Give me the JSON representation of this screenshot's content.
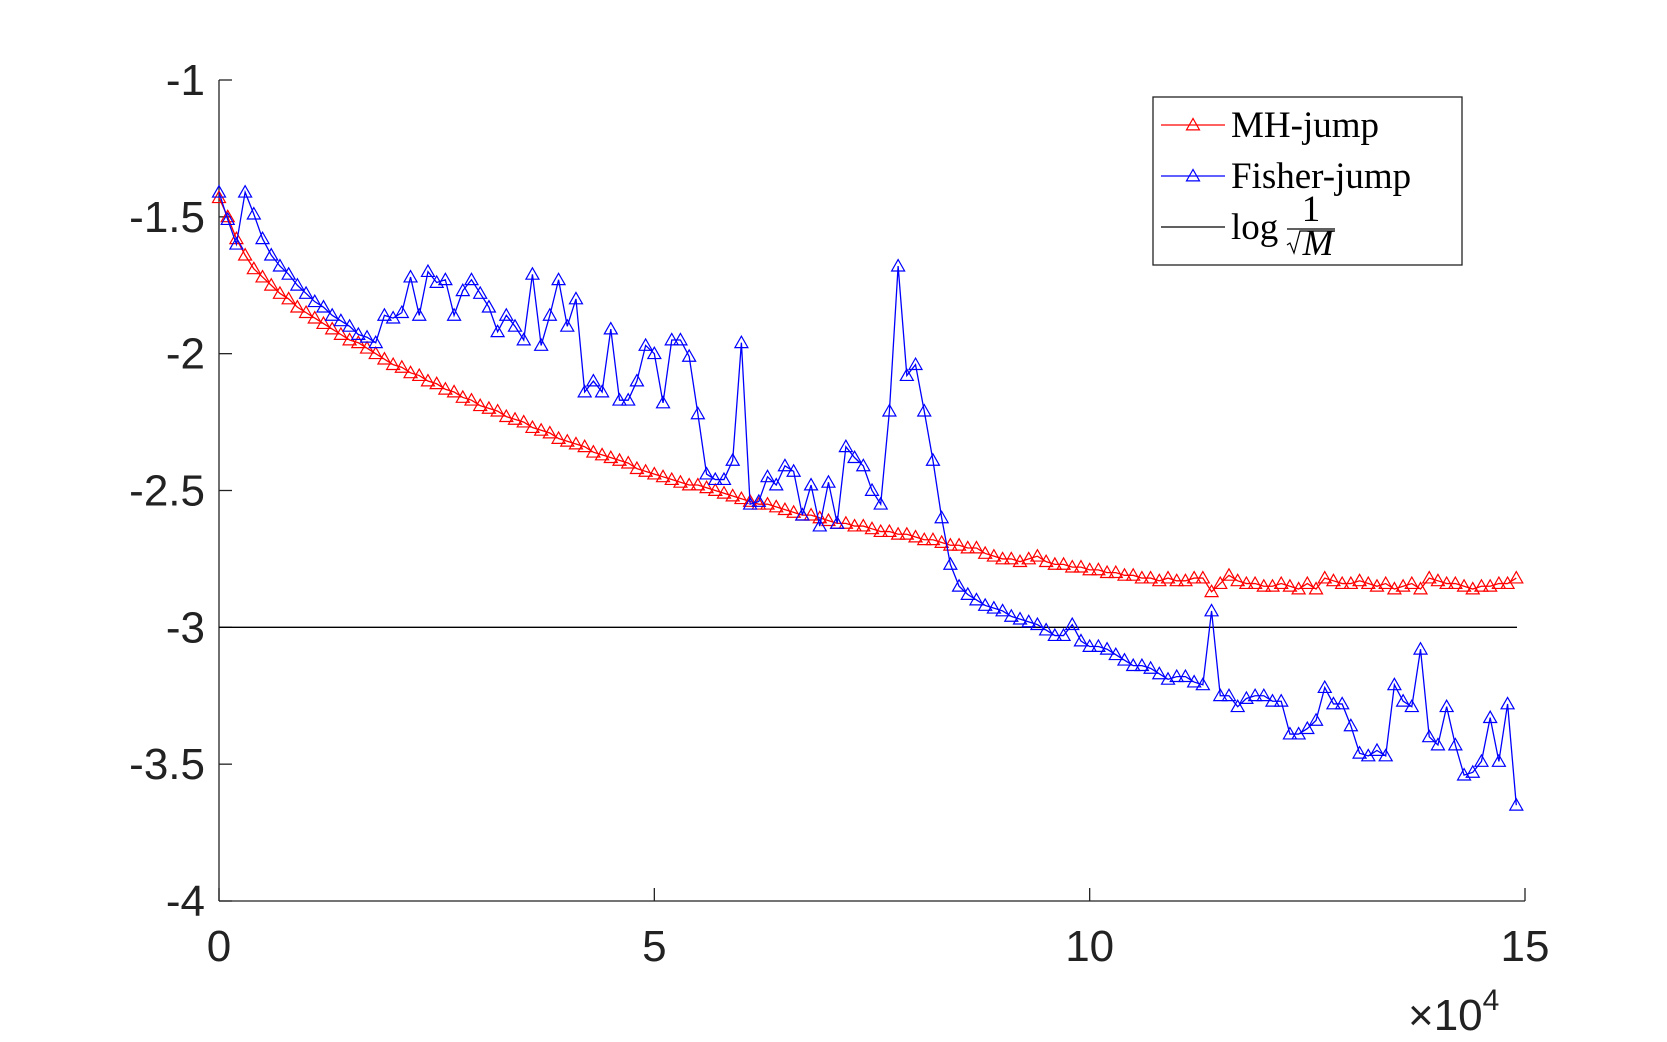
{
  "chart_data": {
    "type": "line",
    "x": [
      0,
      0.1,
      0.2,
      0.3,
      0.4,
      0.5,
      0.6,
      0.7,
      0.8,
      0.9,
      1,
      1.1,
      1.2,
      1.3,
      1.4,
      1.5,
      1.6,
      1.7,
      1.8,
      1.9,
      2,
      2.1,
      2.2,
      2.3,
      2.4,
      2.5,
      2.6,
      2.7,
      2.8,
      2.9,
      3,
      3.1,
      3.2,
      3.3,
      3.4,
      3.5,
      3.6,
      3.7,
      3.8,
      3.9,
      4,
      4.1,
      4.2,
      4.3,
      4.4,
      4.5,
      4.6,
      4.7,
      4.8,
      4.9,
      5,
      5.1,
      5.2,
      5.3,
      5.4,
      5.5,
      5.6,
      5.7,
      5.8,
      5.9,
      6,
      6.1,
      6.2,
      6.3,
      6.4,
      6.5,
      6.6,
      6.7,
      6.8,
      6.9,
      7,
      7.1,
      7.2,
      7.3,
      7.4,
      7.5,
      7.6,
      7.7,
      7.8,
      7.9,
      8,
      8.1,
      8.2,
      8.3,
      8.4,
      8.5,
      8.6,
      8.7,
      8.8,
      8.9,
      9,
      9.1,
      9.2,
      9.3,
      9.4,
      9.5,
      9.6,
      9.7,
      9.8,
      9.9,
      10,
      10.1,
      10.2,
      10.3,
      10.4,
      10.5,
      10.6,
      10.7,
      10.8,
      10.9,
      11,
      11.1,
      11.2,
      11.3,
      11.4,
      11.5,
      11.6,
      11.7,
      11.8,
      11.9,
      12,
      12.1,
      12.2,
      12.3,
      12.4,
      12.5,
      12.6,
      12.7,
      12.8,
      12.9,
      13,
      13.1,
      13.2,
      13.3,
      13.4,
      13.5,
      13.6,
      13.7,
      13.8,
      13.9,
      14,
      14.1,
      14.2,
      14.3,
      14.4,
      14.5,
      14.6,
      14.7,
      14.8,
      14.9
    ],
    "series": [
      {
        "name": "MH-jump",
        "color": "#ff0000",
        "values": [
          -1.43,
          -1.5,
          -1.58,
          -1.64,
          -1.69,
          -1.72,
          -1.75,
          -1.78,
          -1.8,
          -1.83,
          -1.85,
          -1.87,
          -1.89,
          -1.91,
          -1.93,
          -1.95,
          -1.96,
          -1.98,
          -2.0,
          -2.02,
          -2.04,
          -2.05,
          -2.07,
          -2.08,
          -2.1,
          -2.11,
          -2.13,
          -2.14,
          -2.16,
          -2.17,
          -2.19,
          -2.2,
          -2.21,
          -2.23,
          -2.24,
          -2.25,
          -2.27,
          -2.28,
          -2.29,
          -2.31,
          -2.32,
          -2.33,
          -2.34,
          -2.36,
          -2.37,
          -2.38,
          -2.39,
          -2.4,
          -2.42,
          -2.43,
          -2.44,
          -2.45,
          -2.46,
          -2.47,
          -2.48,
          -2.48,
          -2.49,
          -2.5,
          -2.51,
          -2.52,
          -2.53,
          -2.54,
          -2.55,
          -2.55,
          -2.56,
          -2.57,
          -2.58,
          -2.59,
          -2.59,
          -2.6,
          -2.61,
          -2.62,
          -2.62,
          -2.63,
          -2.63,
          -2.64,
          -2.65,
          -2.65,
          -2.66,
          -2.66,
          -2.67,
          -2.68,
          -2.68,
          -2.69,
          -2.7,
          -2.7,
          -2.71,
          -2.71,
          -2.73,
          -2.74,
          -2.75,
          -2.75,
          -2.76,
          -2.75,
          -2.74,
          -2.76,
          -2.77,
          -2.77,
          -2.78,
          -2.78,
          -2.79,
          -2.79,
          -2.8,
          -2.8,
          -2.81,
          -2.81,
          -2.82,
          -2.82,
          -2.83,
          -2.82,
          -2.83,
          -2.83,
          -2.82,
          -2.82,
          -2.87,
          -2.84,
          -2.81,
          -2.83,
          -2.84,
          -2.84,
          -2.85,
          -2.85,
          -2.84,
          -2.85,
          -2.86,
          -2.84,
          -2.86,
          -2.82,
          -2.83,
          -2.84,
          -2.84,
          -2.83,
          -2.84,
          -2.85,
          -2.84,
          -2.86,
          -2.85,
          -2.84,
          -2.86,
          -2.82,
          -2.83,
          -2.84,
          -2.84,
          -2.85,
          -2.86,
          -2.85,
          -2.85,
          -2.84,
          -2.84,
          -2.82
        ]
      },
      {
        "name": "Fisher-jump",
        "color": "#0000ff",
        "values": [
          -1.41,
          -1.51,
          -1.6,
          -1.41,
          -1.49,
          -1.58,
          -1.64,
          -1.68,
          -1.71,
          -1.75,
          -1.78,
          -1.81,
          -1.83,
          -1.86,
          -1.88,
          -1.9,
          -1.93,
          -1.94,
          -1.96,
          -1.86,
          -1.87,
          -1.85,
          -1.72,
          -1.86,
          -1.7,
          -1.74,
          -1.73,
          -1.86,
          -1.77,
          -1.73,
          -1.78,
          -1.83,
          -1.92,
          -1.86,
          -1.9,
          -1.95,
          -1.71,
          -1.97,
          -1.86,
          -1.73,
          -1.9,
          -1.8,
          -2.14,
          -2.1,
          -2.14,
          -1.91,
          -2.17,
          -2.17,
          -2.1,
          -1.97,
          -2.0,
          -2.18,
          -1.95,
          -1.95,
          -2.01,
          -2.22,
          -2.44,
          -2.46,
          -2.46,
          -2.39,
          -1.96,
          -2.55,
          -2.54,
          -2.45,
          -2.48,
          -2.41,
          -2.43,
          -2.59,
          -2.48,
          -2.63,
          -2.47,
          -2.62,
          -2.34,
          -2.38,
          -2.41,
          -2.5,
          -2.55,
          -2.21,
          -1.68,
          -2.08,
          -2.04,
          -2.21,
          -2.39,
          -2.6,
          -2.77,
          -2.85,
          -2.88,
          -2.9,
          -2.92,
          -2.93,
          -2.94,
          -2.96,
          -2.97,
          -2.98,
          -2.99,
          -3.01,
          -3.03,
          -3.03,
          -2.99,
          -3.05,
          -3.07,
          -3.07,
          -3.08,
          -3.1,
          -3.12,
          -3.14,
          -3.14,
          -3.15,
          -3.17,
          -3.19,
          -3.18,
          -3.18,
          -3.2,
          -3.21,
          -2.94,
          -3.25,
          -3.25,
          -3.29,
          -3.26,
          -3.25,
          -3.25,
          -3.27,
          -3.27,
          -3.39,
          -3.39,
          -3.37,
          -3.34,
          -3.22,
          -3.28,
          -3.28,
          -3.36,
          -3.46,
          -3.47,
          -3.45,
          -3.47,
          -3.21,
          -3.27,
          -3.29,
          -3.08,
          -3.4,
          -3.43,
          -3.29,
          -3.43,
          -3.54,
          -3.53,
          -3.49,
          -3.33,
          -3.49,
          -3.28,
          -3.65
        ]
      }
    ],
    "reference_line": {
      "value": -3,
      "color": "#000000",
      "name_parts": [
        "log",
        "1",
        "M"
      ]
    },
    "marker": "triangle",
    "xlim": [
      0,
      15
    ],
    "xticks": [
      0,
      5,
      10,
      15
    ],
    "x_scale_label": {
      "base": "×10",
      "exponent": "4"
    },
    "ylim": [
      -4,
      -1
    ],
    "yticks": [
      -4,
      -3.5,
      -3,
      -2.5,
      -2,
      -1.5,
      -1
    ],
    "legend": "top-right"
  }
}
